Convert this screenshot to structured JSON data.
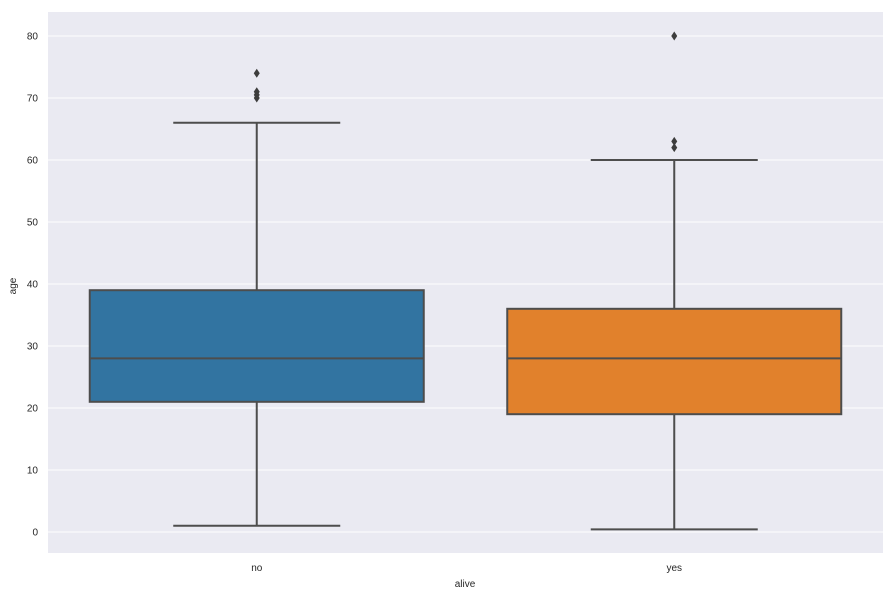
{
  "chart_data": {
    "type": "box",
    "title": "",
    "xlabel": "alive",
    "ylabel": "age",
    "categories": [
      "no",
      "yes"
    ],
    "ylim": [
      -3.5,
      83.8
    ],
    "yticks": [
      0,
      10,
      20,
      30,
      40,
      50,
      60,
      70,
      80
    ],
    "grid": true,
    "style": "seaborn-darkgrid",
    "series": [
      {
        "name": "no",
        "color": "#3274a1",
        "whisker_low": 1,
        "q1": 21,
        "median": 28,
        "q3": 39,
        "whisker_high": 66,
        "outliers": [
          70,
          70.5,
          71,
          74
        ]
      },
      {
        "name": "yes",
        "color": "#e1812c",
        "whisker_low": 0.42,
        "q1": 19,
        "median": 28,
        "q3": 36,
        "whisker_high": 60,
        "outliers": [
          62,
          63,
          80
        ]
      }
    ]
  },
  "colors": {
    "plot_background": "#eaeaf2",
    "grid": "#ffffff",
    "line": "#4d4d4d"
  }
}
